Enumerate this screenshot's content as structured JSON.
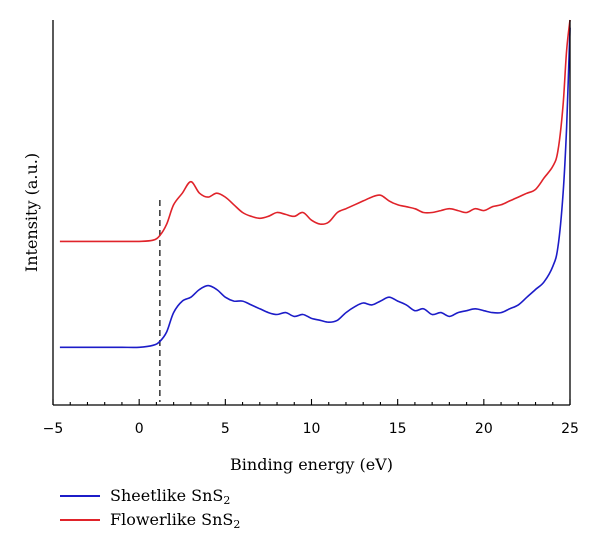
{
  "chart_data": {
    "type": "line",
    "xlabel": "Binding energy (eV)",
    "ylabel": "Intensity (a.u.)",
    "xlim": [
      -5,
      25
    ],
    "xticks": [
      -5,
      0,
      5,
      10,
      15,
      20,
      25
    ],
    "ylim": [
      0,
      1
    ],
    "yticks_shown": false,
    "grid": false,
    "legend_position": "bottom-left outside",
    "reference_line": {
      "x": 1.2,
      "style": "dashed"
    },
    "series": [
      {
        "name": "Sheetlike SnS2",
        "name_base": "Sheetlike SnS",
        "name_subscript": "2",
        "color": "#1c1cc8",
        "x": [
          -4.6,
          -4,
          -3,
          -2,
          -1,
          0,
          0.8,
          1.2,
          1.6,
          2,
          2.5,
          3,
          3.5,
          4,
          4.5,
          5,
          5.5,
          6,
          6.5,
          7,
          7.5,
          8,
          8.5,
          9,
          9.5,
          10,
          10.5,
          11,
          11.5,
          12,
          12.5,
          13,
          13.5,
          14,
          14.5,
          15,
          15.5,
          16,
          16.5,
          17,
          17.5,
          18,
          18.5,
          19,
          19.5,
          20,
          20.5,
          21,
          21.5,
          22,
          22.5,
          23,
          23.5,
          24,
          24.3,
          24.6,
          24.8,
          25
        ],
        "y": [
          0.15,
          0.15,
          0.15,
          0.15,
          0.15,
          0.15,
          0.155,
          0.165,
          0.19,
          0.24,
          0.27,
          0.28,
          0.3,
          0.31,
          0.3,
          0.28,
          0.27,
          0.27,
          0.26,
          0.25,
          0.24,
          0.235,
          0.24,
          0.23,
          0.235,
          0.225,
          0.22,
          0.215,
          0.22,
          0.24,
          0.255,
          0.265,
          0.26,
          0.27,
          0.28,
          0.27,
          0.26,
          0.245,
          0.25,
          0.235,
          0.24,
          0.23,
          0.24,
          0.245,
          0.25,
          0.245,
          0.24,
          0.24,
          0.25,
          0.26,
          0.28,
          0.3,
          0.32,
          0.36,
          0.41,
          0.55,
          0.72,
          0.98
        ]
      },
      {
        "name": "Flowerlike SnS2",
        "name_base": "Flowerlike SnS",
        "name_subscript": "2",
        "color": "#e0232a",
        "x": [
          -4.6,
          -4,
          -3,
          -2,
          -1,
          0,
          0.8,
          1.2,
          1.6,
          2,
          2.5,
          3,
          3.5,
          4,
          4.5,
          5,
          5.5,
          6,
          6.5,
          7,
          7.5,
          8,
          8.5,
          9,
          9.5,
          10,
          10.5,
          11,
          11.5,
          12,
          12.5,
          13,
          13.5,
          14,
          14.5,
          15,
          15.5,
          16,
          16.5,
          17,
          17.5,
          18,
          18.5,
          19,
          19.5,
          20,
          20.5,
          21,
          21.5,
          22,
          22.5,
          23,
          23.5,
          24,
          24.3,
          24.6,
          24.8,
          25
        ],
        "y": [
          0.425,
          0.425,
          0.425,
          0.425,
          0.425,
          0.425,
          0.428,
          0.44,
          0.47,
          0.52,
          0.55,
          0.58,
          0.55,
          0.54,
          0.55,
          0.54,
          0.52,
          0.5,
          0.49,
          0.485,
          0.49,
          0.5,
          0.495,
          0.49,
          0.5,
          0.48,
          0.47,
          0.475,
          0.5,
          0.51,
          0.52,
          0.53,
          0.54,
          0.545,
          0.53,
          0.52,
          0.515,
          0.51,
          0.5,
          0.5,
          0.505,
          0.51,
          0.505,
          0.5,
          0.51,
          0.505,
          0.515,
          0.52,
          0.53,
          0.54,
          0.55,
          0.56,
          0.59,
          0.62,
          0.66,
          0.78,
          0.92,
          1.0
        ]
      }
    ]
  }
}
